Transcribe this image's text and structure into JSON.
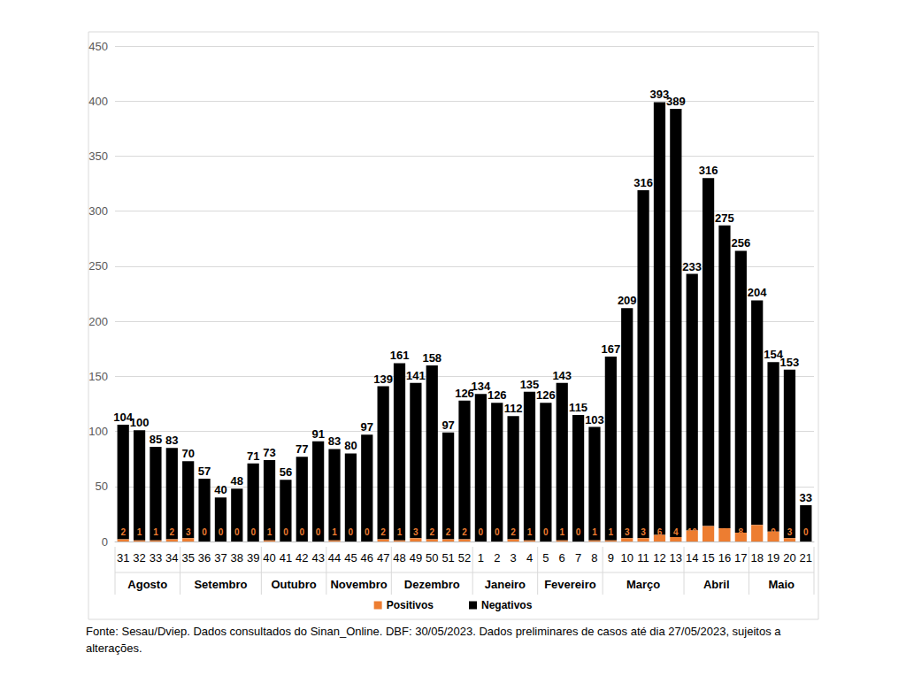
{
  "chart_data": {
    "type": "bar",
    "categories": [
      "31",
      "32",
      "33",
      "34",
      "35",
      "36",
      "37",
      "38",
      "39",
      "40",
      "41",
      "42",
      "43",
      "44",
      "45",
      "46",
      "47",
      "48",
      "49",
      "50",
      "51",
      "52",
      "1",
      "2",
      "3",
      "4",
      "5",
      "6",
      "7",
      "8",
      "9",
      "10",
      "11",
      "12",
      "13",
      "14",
      "15",
      "16",
      "17",
      "18",
      "19",
      "20",
      "21"
    ],
    "groups": [
      {
        "label": "Agosto",
        "from": "31",
        "to": "34"
      },
      {
        "label": "Setembro",
        "from": "35",
        "to": "39"
      },
      {
        "label": "Outubro",
        "from": "40",
        "to": "43"
      },
      {
        "label": "Novembro",
        "from": "44",
        "to": "47"
      },
      {
        "label": "Dezembro",
        "from": "48",
        "to": "52"
      },
      {
        "label": "Janeiro",
        "from": "1",
        "to": "4"
      },
      {
        "label": "Fevereiro",
        "from": "5",
        "to": "8"
      },
      {
        "label": "Março",
        "from": "9",
        "to": "13"
      },
      {
        "label": "Abril",
        "from": "14",
        "to": "17"
      },
      {
        "label": "Maio",
        "from": "18",
        "to": "21"
      }
    ],
    "series": [
      {
        "name": "Positivos",
        "color": "#ed7d31",
        "values": [
          2,
          1,
          1,
          2,
          3,
          0,
          0,
          0,
          0,
          1,
          0,
          0,
          0,
          1,
          0,
          0,
          2,
          1,
          3,
          2,
          2,
          2,
          0,
          0,
          2,
          1,
          0,
          1,
          0,
          1,
          1,
          3,
          3,
          6,
          4,
          10,
          14,
          12,
          8,
          15,
          9,
          3,
          0
        ]
      },
      {
        "name": "Negativos",
        "color": "#000000",
        "values": [
          104,
          100,
          85,
          83,
          70,
          57,
          40,
          48,
          71,
          73,
          56,
          77,
          91,
          83,
          80,
          97,
          139,
          161,
          141,
          158,
          97,
          126,
          134,
          126,
          112,
          135,
          126,
          143,
          115,
          103,
          167,
          209,
          316,
          393,
          389,
          233,
          316,
          275,
          256,
          204,
          154,
          153,
          33
        ]
      }
    ],
    "ylim": [
      0,
      450
    ],
    "yticks": [
      0,
      50,
      100,
      150,
      200,
      250,
      300,
      350,
      400,
      450
    ],
    "grid": true,
    "stacked": true,
    "data_labels": true,
    "legend": "bottom",
    "note": "Fonte: Sesau/Dviep. Dados consultados do Sinan_Online. DBF: 30/05/2023. Dados preliminares de casos até dia 27/05/2023, sujeitos a alterações."
  }
}
